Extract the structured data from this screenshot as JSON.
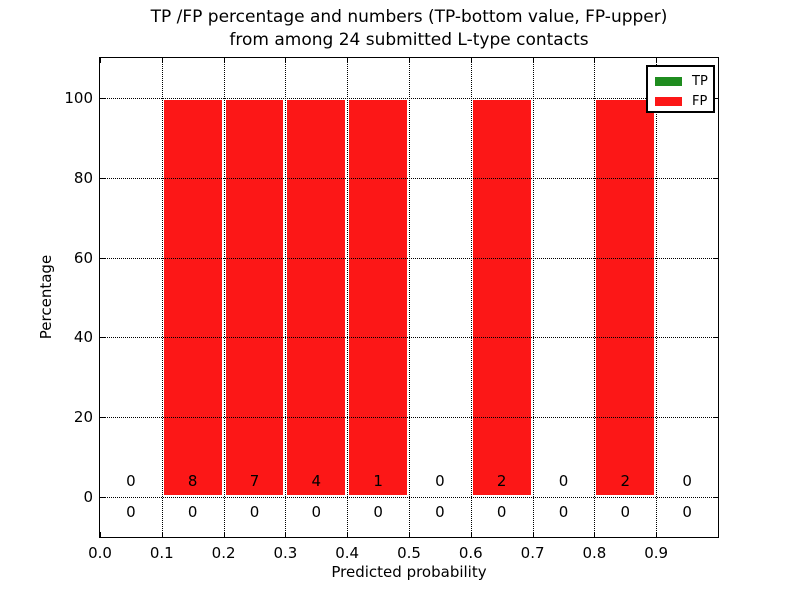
{
  "chart_data": {
    "type": "bar",
    "title_line1": "TP /FP percentage and numbers (TP-bottom value, FP-upper)",
    "title_line2": "from among 24 submitted L-type contacts",
    "xlabel": "Predicted probability",
    "ylabel": "Percentage",
    "xlim": [
      0.0,
      1.0
    ],
    "ylim": [
      -10,
      110
    ],
    "grid": "dotted, drawn above bars",
    "legend_position": "upper right",
    "bin_width": 0.1,
    "bin_starts": [
      0.0,
      0.1,
      0.2,
      0.3,
      0.4,
      0.5,
      0.6,
      0.7,
      0.8,
      0.9
    ],
    "x_tick_values": [
      0.0,
      0.1,
      0.2,
      0.3,
      0.4,
      0.5,
      0.6,
      0.7,
      0.8,
      0.9
    ],
    "x_tick_labels": [
      "0.0",
      "0.1",
      "0.2",
      "0.3",
      "0.4",
      "0.5",
      "0.6",
      "0.7",
      "0.8",
      "0.9"
    ],
    "y_tick_values": [
      0,
      20,
      40,
      60,
      80,
      100
    ],
    "y_tick_labels": [
      "0",
      "20",
      "40",
      "60",
      "80",
      "100"
    ],
    "series": [
      {
        "name": "TP",
        "color": "#1f8c1f",
        "percentages": [
          0,
          0,
          0,
          0,
          0,
          0,
          0,
          0,
          0,
          0
        ],
        "counts": [
          0,
          0,
          0,
          0,
          0,
          0,
          0,
          0,
          0,
          0
        ]
      },
      {
        "name": "FP",
        "color": "#fc1717",
        "percentages": [
          0,
          100,
          100,
          100,
          100,
          0,
          100,
          0,
          100,
          0
        ],
        "counts": [
          0,
          8,
          7,
          4,
          1,
          0,
          2,
          0,
          2,
          0
        ]
      }
    ]
  }
}
